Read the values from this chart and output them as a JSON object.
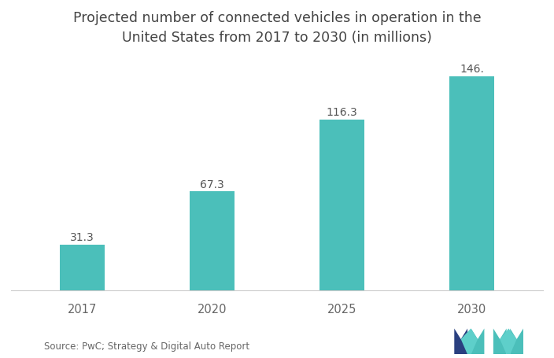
{
  "categories": [
    "2017",
    "2020",
    "2025",
    "2030"
  ],
  "values": [
    31.3,
    67.3,
    116.3,
    146.0
  ],
  "labels": [
    "31.3",
    "67.3",
    "116.3",
    "146."
  ],
  "bar_color": "#4bbfba",
  "title_line1": "Projected number of connected vehicles in operation in the",
  "title_line2": "United States from 2017 to 2030 (in millions)",
  "source_text": "Source: PwC; Strategy & Digital Auto Report",
  "background_color": "#ffffff",
  "title_fontsize": 12.5,
  "label_fontsize": 10,
  "tick_fontsize": 10.5,
  "source_fontsize": 8.5,
  "ylim": [
    0,
    158
  ],
  "bar_width": 0.35
}
